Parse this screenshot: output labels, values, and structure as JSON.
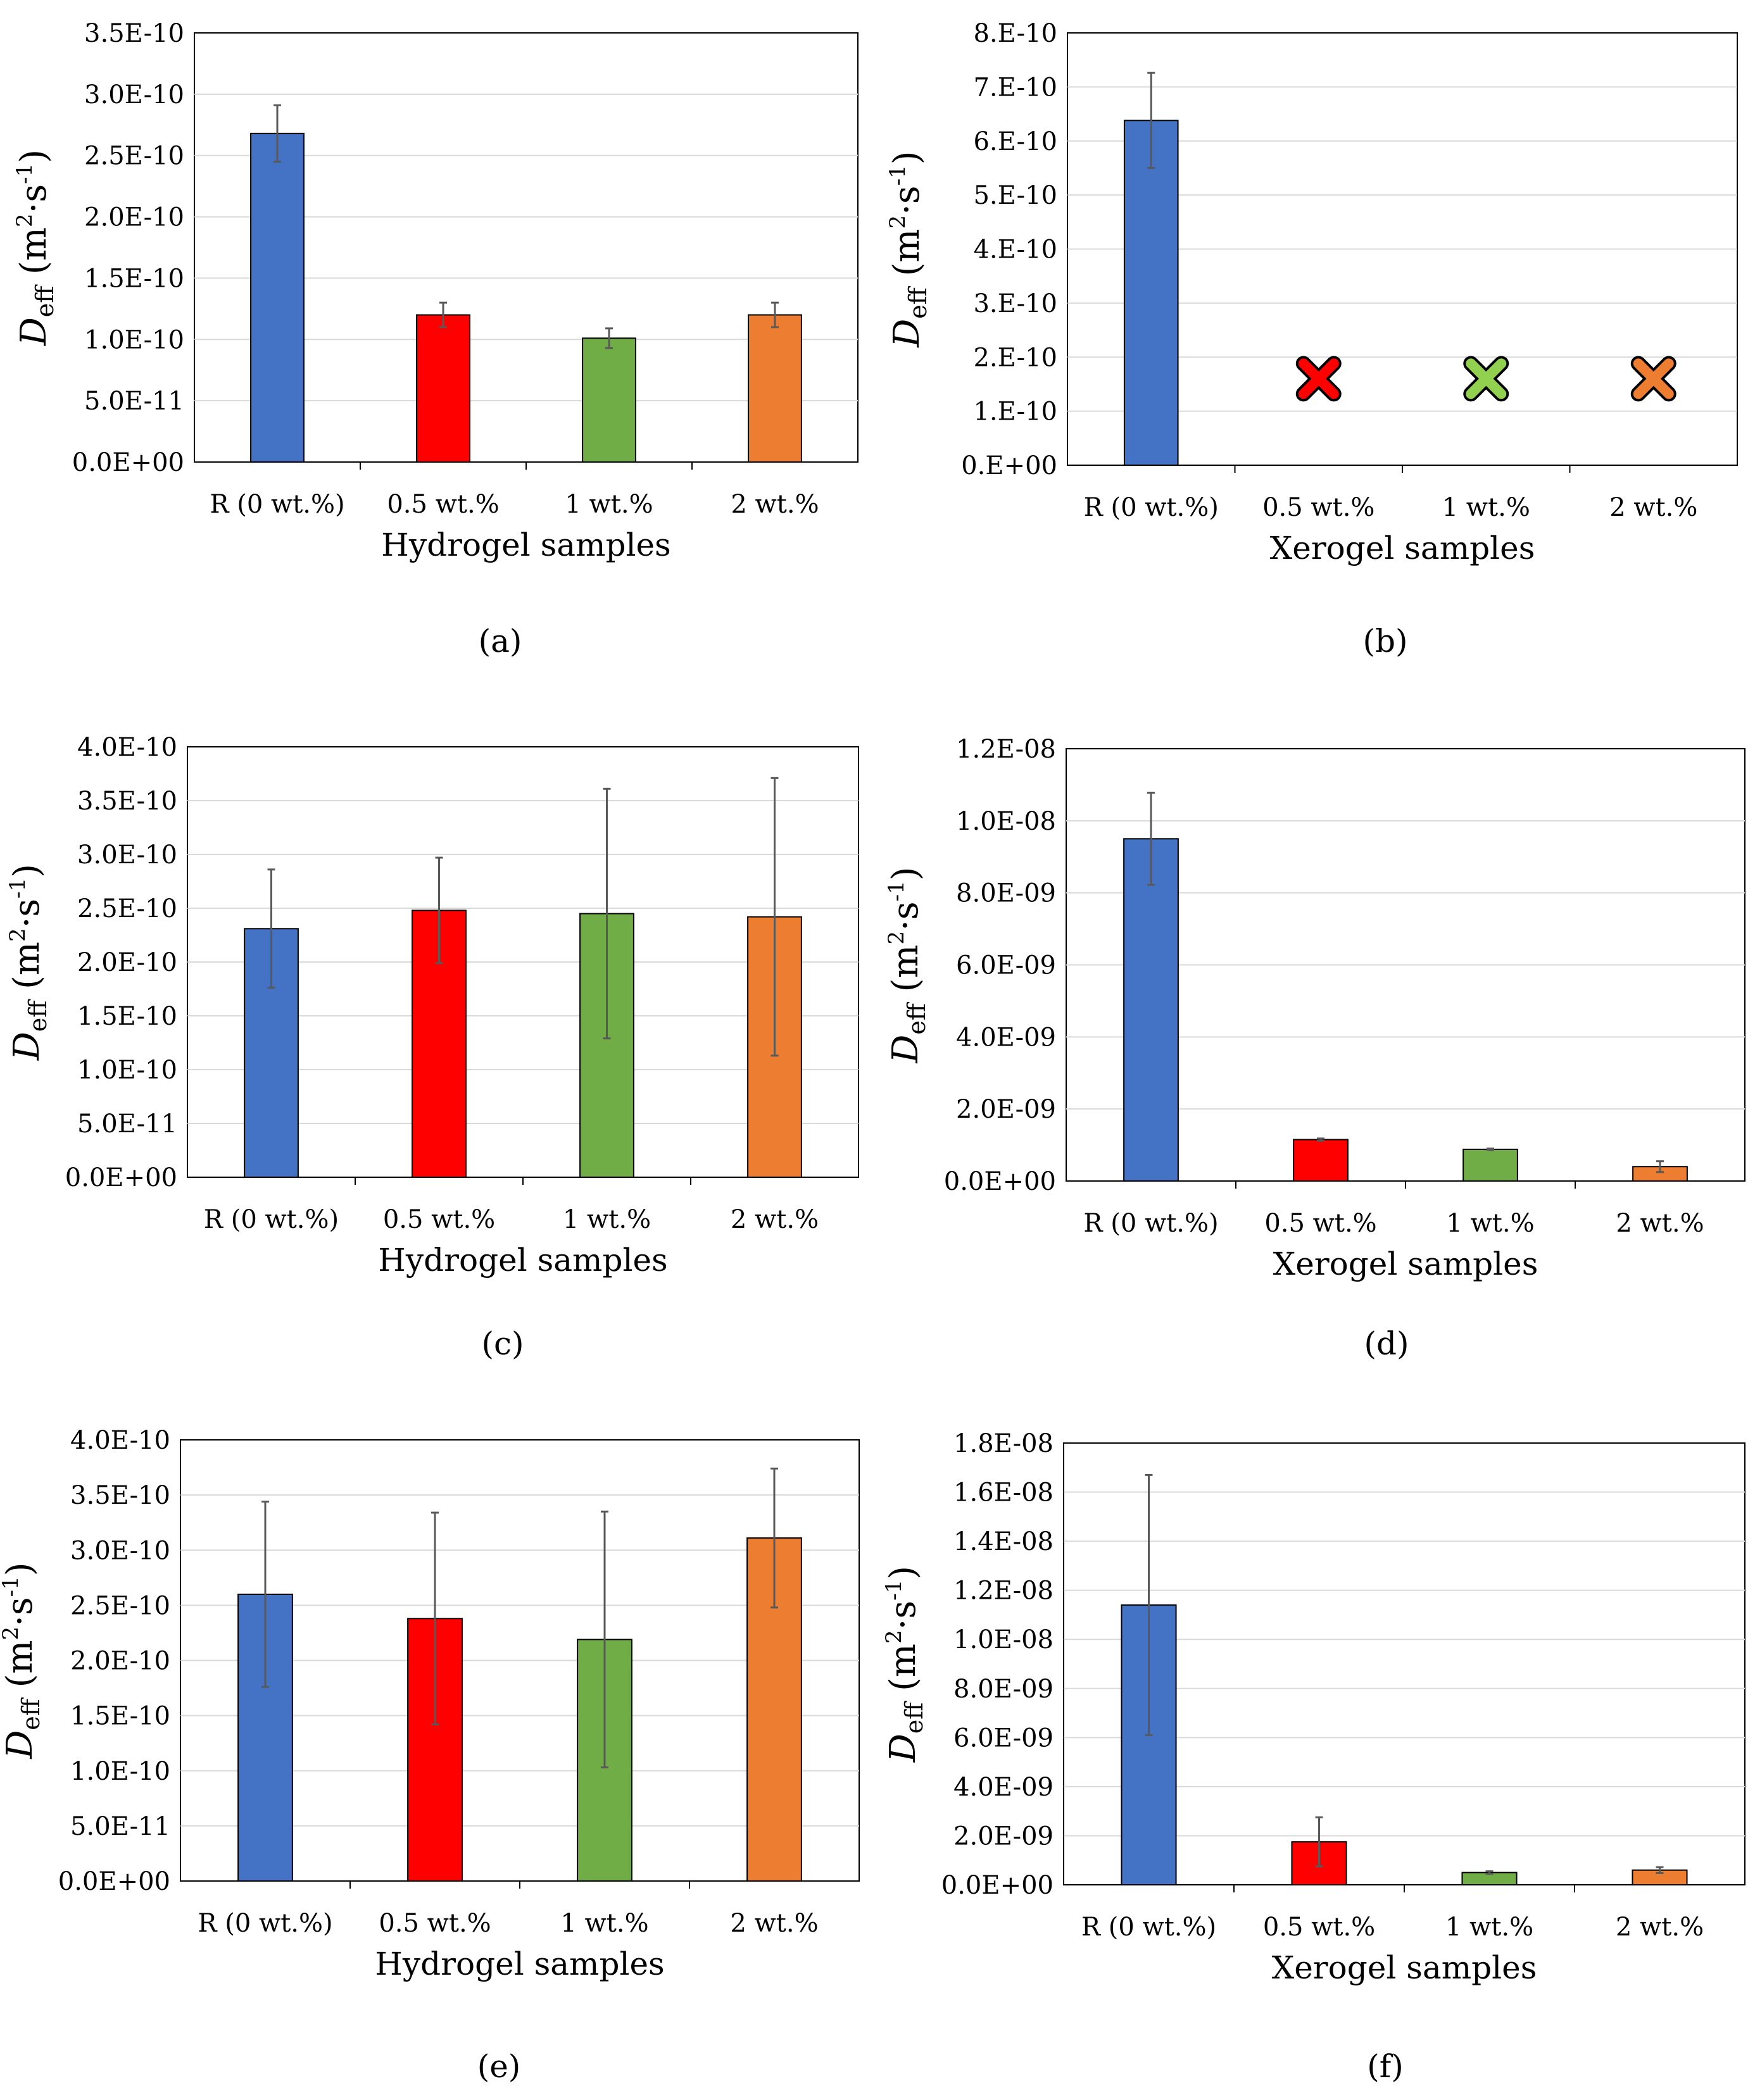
{
  "figure": {
    "panels": [
      {
        "id": "a",
        "chart_data": {
          "type": "bar",
          "caption": "(a)",
          "xlabel": "Hydrogel samples",
          "ylabel": {
            "main": "D",
            "sub": "eff",
            "unit_open": " (m",
            "sup1": "2",
            "unit_mid": "·s",
            "sup2": "-1",
            "unit_close": ")"
          },
          "categories": [
            "R (0 wt.%)",
            "0.5 wt.%",
            "1 wt.%",
            "2 wt.%"
          ],
          "values": [
            2.68e-10,
            1.2e-10,
            1.01e-10,
            1.2e-10
          ],
          "errors": [
            2.3e-11,
            1e-11,
            8e-12,
            1e-11
          ],
          "markers": [],
          "colors": [
            "#4472C4",
            "#FF0000",
            "#70AD47",
            "#ED7D31"
          ],
          "ylim": [
            0,
            3.5e-10
          ],
          "yticks": [
            "0.0E+00",
            "5.0E-11",
            "1.0E-10",
            "1.5E-10",
            "2.0E-10",
            "2.5E-10",
            "3.0E-10",
            "3.5E-10"
          ],
          "grid": true
        }
      },
      {
        "id": "b",
        "chart_data": {
          "type": "bar",
          "caption": "(b)",
          "xlabel": "Xerogel samples",
          "ylabel": {
            "main": "D",
            "sub": "eff",
            "unit_open": " (m",
            "sup1": "2",
            "unit_mid": "·s",
            "sup2": "-1",
            "unit_close": ")"
          },
          "categories": [
            "R (0 wt.%)",
            "0.5 wt.%",
            "1 wt.%",
            "2 wt.%"
          ],
          "values": [
            6.38e-10,
            null,
            null,
            null
          ],
          "errors": [
            8.8e-11,
            null,
            null,
            null
          ],
          "markers": [
            null,
            1.6e-10,
            1.6e-10,
            1.6e-10
          ],
          "colors": [
            "#4472C4",
            "#FF0000",
            "#92D050",
            "#ED7D31"
          ],
          "ylim": [
            0,
            8e-10
          ],
          "yticks": [
            "0.E+00",
            "1.E-10",
            "2.E-10",
            "3.E-10",
            "4.E-10",
            "5.E-10",
            "6.E-10",
            "7.E-10",
            "8.E-10"
          ],
          "grid": true
        }
      },
      {
        "id": "c",
        "chart_data": {
          "type": "bar",
          "caption": "(c)",
          "xlabel": "Hydrogel samples",
          "ylabel": {
            "main": "D",
            "sub": "eff",
            "unit_open": " (m",
            "sup1": "2",
            "unit_mid": "·s",
            "sup2": "-1",
            "unit_close": ")"
          },
          "categories": [
            "R (0 wt.%)",
            "0.5 wt.%",
            "1 wt.%",
            "2 wt.%"
          ],
          "values": [
            2.31e-10,
            2.48e-10,
            2.45e-10,
            2.42e-10
          ],
          "errors": [
            5.5e-11,
            4.9e-11,
            1.16e-10,
            1.29e-10
          ],
          "markers": [],
          "colors": [
            "#4472C4",
            "#FF0000",
            "#70AD47",
            "#ED7D31"
          ],
          "ylim": [
            0,
            4e-10
          ],
          "yticks": [
            "0.0E+00",
            "5.0E-11",
            "1.0E-10",
            "1.5E-10",
            "2.0E-10",
            "2.5E-10",
            "3.0E-10",
            "3.5E-10",
            "4.0E-10"
          ],
          "grid": true
        }
      },
      {
        "id": "d",
        "chart_data": {
          "type": "bar",
          "caption": "(d)",
          "xlabel": "Xerogel samples",
          "ylabel": {
            "main": "D",
            "sub": "eff",
            "unit_open": " (m",
            "sup1": "2",
            "unit_mid": "·s",
            "sup2": "-1",
            "unit_close": ")"
          },
          "categories": [
            "R (0 wt.%)",
            "0.5 wt.%",
            "1 wt.%",
            "2 wt.%"
          ],
          "values": [
            9.5e-09,
            1.15e-09,
            8.8e-10,
            4e-10
          ],
          "errors": [
            1.28e-09,
            3e-11,
            2e-11,
            1.5e-10
          ],
          "markers": [],
          "colors": [
            "#4472C4",
            "#FF0000",
            "#70AD47",
            "#ED7D31"
          ],
          "ylim": [
            0,
            1.2e-08
          ],
          "yticks": [
            "0.0E+00",
            "2.0E-09",
            "4.0E-09",
            "6.0E-09",
            "8.0E-09",
            "1.0E-08",
            "1.2E-08"
          ],
          "grid": true
        }
      },
      {
        "id": "e",
        "chart_data": {
          "type": "bar",
          "caption": "(e)",
          "xlabel": "Hydrogel samples",
          "ylabel": {
            "main": "D",
            "sub": "eff",
            "unit_open": " (m",
            "sup1": "2",
            "unit_mid": "·s",
            "sup2": "-1",
            "unit_close": ")"
          },
          "categories": [
            "R (0 wt.%)",
            "0.5 wt.%",
            "1 wt.%",
            "2 wt.%"
          ],
          "values": [
            2.6e-10,
            2.38e-10,
            2.19e-10,
            3.11e-10
          ],
          "errors": [
            8.4e-11,
            9.6e-11,
            1.16e-10,
            6.3e-11
          ],
          "markers": [],
          "colors": [
            "#4472C4",
            "#FF0000",
            "#70AD47",
            "#ED7D31"
          ],
          "ylim": [
            0,
            4e-10
          ],
          "yticks": [
            "0.0E+00",
            "5.0E-11",
            "1.0E-10",
            "1.5E-10",
            "2.0E-10",
            "2.5E-10",
            "3.0E-10",
            "3.5E-10",
            "4.0E-10"
          ],
          "grid": true
        }
      },
      {
        "id": "f",
        "chart_data": {
          "type": "bar",
          "caption": "(f)",
          "xlabel": "Xerogel samples",
          "ylabel": {
            "main": "D",
            "sub": "eff",
            "unit_open": " (m",
            "sup1": "2",
            "unit_mid": "·s",
            "sup2": "-1",
            "unit_close": ")"
          },
          "categories": [
            "R (0 wt.%)",
            "0.5 wt.%",
            "1 wt.%",
            "2 wt.%"
          ],
          "values": [
            1.14e-08,
            1.75e-09,
            5e-10,
            6e-10
          ],
          "errors": [
            5.3e-09,
            1e-09,
            5e-11,
            1.2e-10
          ],
          "markers": [],
          "colors": [
            "#4472C4",
            "#FF0000",
            "#70AD47",
            "#ED7D31"
          ],
          "ylim": [
            0,
            1.8e-08
          ],
          "yticks": [
            "0.0E+00",
            "2.0E-09",
            "4.0E-09",
            "6.0E-09",
            "8.0E-09",
            "1.0E-08",
            "1.2E-08",
            "1.4E-08",
            "1.6E-08",
            "1.8E-08"
          ],
          "grid": true
        }
      }
    ]
  }
}
